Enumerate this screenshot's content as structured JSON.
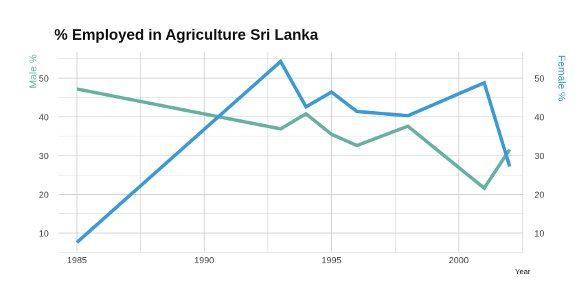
{
  "chart_data": {
    "type": "line",
    "title": "% Employed in Agriculture Sri Lanka",
    "xlabel": "Year",
    "ylabel_left": "Male %",
    "ylabel_right": "Female %",
    "xlim": [
      1985,
      2002
    ],
    "ylim": [
      5,
      56
    ],
    "x_ticks": [
      1985,
      1990,
      1995,
      2000
    ],
    "y_ticks": [
      10,
      20,
      30,
      40,
      50
    ],
    "grid": true,
    "series": [
      {
        "name": "Male %",
        "axis": "left",
        "color": "#66b2a0",
        "x": [
          1985,
          1993,
          1994,
          1995,
          1996,
          1998,
          2001,
          2002
        ],
        "y": [
          47.2,
          36.9,
          40.8,
          35.5,
          32.6,
          37.6,
          21.6,
          31.6
        ]
      },
      {
        "name": "Female %",
        "axis": "right",
        "color": "#3a9ad9",
        "x": [
          1985,
          1993,
          1994,
          1995,
          1996,
          1998,
          2001,
          2002
        ],
        "y": [
          7.6,
          54.3,
          42.6,
          46.4,
          41.4,
          40.3,
          48.8,
          27.2
        ]
      }
    ]
  }
}
